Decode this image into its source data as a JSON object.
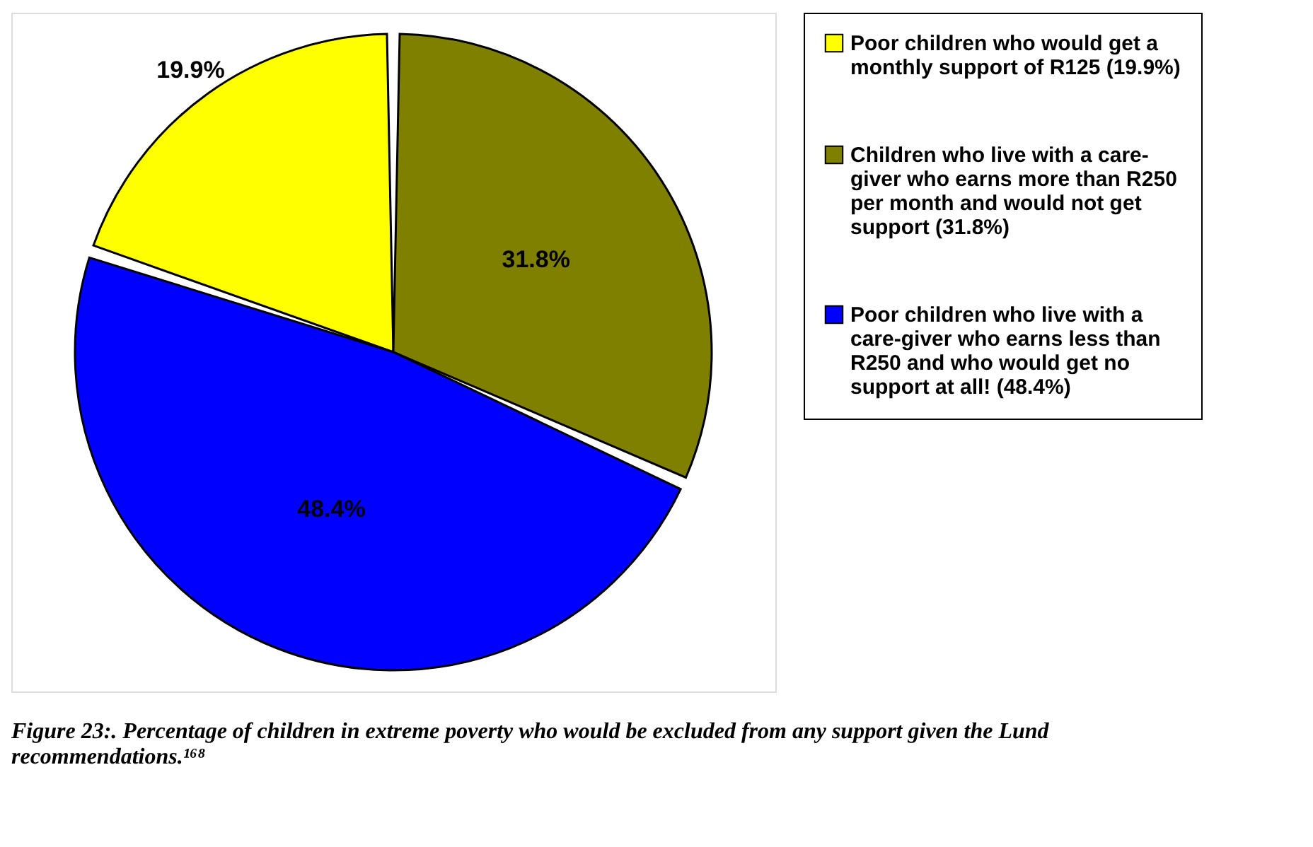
{
  "chart_data": {
    "type": "pie",
    "title": "Figure 23:. Percentage of children in extreme poverty who would be excluded from any support given the Lund recommendations.¹⁶⁸",
    "categories": [
      "Poor children who would get a monthly support of R125 (19.9%)",
      "Children who live with a care-giver who earns more than R250 per month and would not get support (31.8%)",
      "Poor children who live with a care-giver who earns less than R250 and who would get no support at all! (48.4%)"
    ],
    "values": [
      19.9,
      31.8,
      48.4
    ],
    "colors": [
      "#ffff00",
      "#808000",
      "#0000ff"
    ],
    "value_labels": [
      "19.9%",
      "31.8%",
      "48.4%"
    ],
    "legend": "right"
  }
}
